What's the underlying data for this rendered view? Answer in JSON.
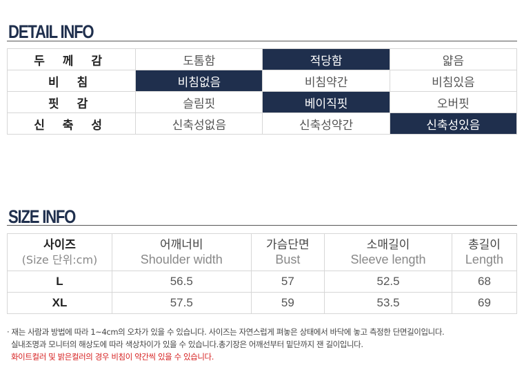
{
  "detail": {
    "title": "DETAIL INFO",
    "rows": [
      {
        "label": "두 께 감",
        "options": [
          "도톰함",
          "적당함",
          "얇음"
        ],
        "selected": 1
      },
      {
        "label": "비 침",
        "options": [
          "비침없음",
          "비침약간",
          "비침있음"
        ],
        "selected": 0
      },
      {
        "label": "핏 감",
        "options": [
          "슬림핏",
          "베이직핏",
          "오버핏"
        ],
        "selected": 1
      },
      {
        "label": "신 축 성",
        "options": [
          "신축성없음",
          "신축성약간",
          "신축성있음"
        ],
        "selected": 2
      }
    ],
    "selected_color": "#1f2f4d"
  },
  "size": {
    "title": "SIZE INFO",
    "headers": [
      {
        "kr": "사이즈",
        "en": "(Size 단위:cm)"
      },
      {
        "kr": "어깨너비",
        "en": "Shoulder width"
      },
      {
        "kr": "가슴단면",
        "en": "Bust"
      },
      {
        "kr": "소매길이",
        "en": "Sleeve length"
      },
      {
        "kr": "총길이",
        "en": "Length"
      }
    ],
    "rows": [
      {
        "size": "L",
        "values": [
          "56.5",
          "57",
          "52.5",
          "68"
        ]
      },
      {
        "size": "XL",
        "values": [
          "57.5",
          "59",
          "53.5",
          "69"
        ]
      }
    ]
  },
  "notes": {
    "line1": "· 재는 사람과 방법에 따라 1~4cm의 오차가 있을 수 있습니다. 사이즈는 자연스럽게 펴놓은 상태에서 바닥에 놓고 측정한 단면길이입니다.",
    "line2": "실내조명과 모니터의 해상도에 따라 색상차이가 있을 수 있습니다.총기장은 어깨선부터 밑단까지 잰 길이입니다.",
    "line3": "화이트컬러 및 밝은컬러의 경우 비침이 약간씩 있을 수 있습니다."
  }
}
